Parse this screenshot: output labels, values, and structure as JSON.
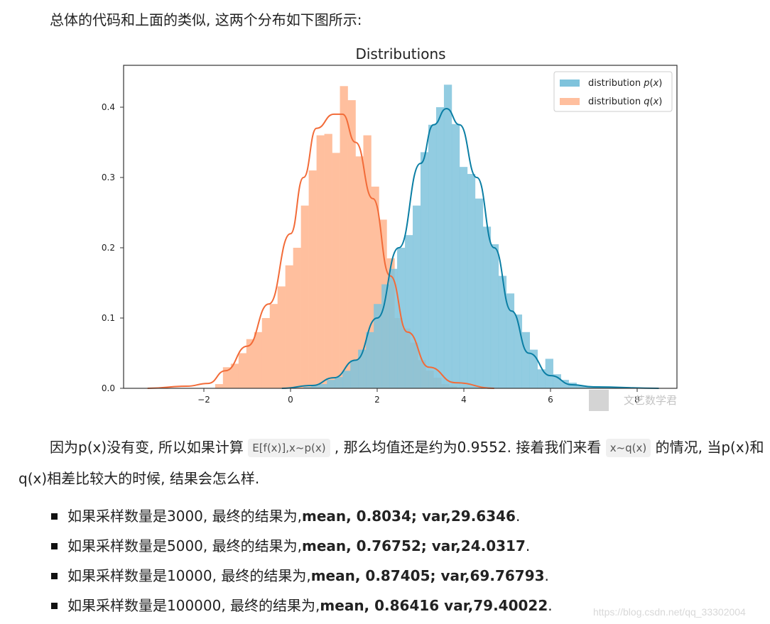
{
  "intro_text": "总体的代码和上面的类似, 这两个分布如下图所示:",
  "chart_data": {
    "type": "bar",
    "title": "Distributions",
    "xlabel": "",
    "ylabel": "",
    "xlim": [
      -3.8,
      9.0
    ],
    "ylim": [
      0.0,
      0.46
    ],
    "xticks": [
      -2,
      0,
      2,
      4,
      6,
      8
    ],
    "xtick_labels": [
      "−2",
      "0",
      "2",
      "4",
      "6",
      "8"
    ],
    "yticks": [
      0.0,
      0.1,
      0.2,
      0.3,
      0.4
    ],
    "ytick_labels": [
      "0.0",
      "0.1",
      "0.2",
      "0.3",
      "0.4"
    ],
    "grid": false,
    "legend_position": "upper right",
    "bin_width": 0.18,
    "series": [
      {
        "name": "distribution p(x)",
        "color": "#7fc3dc",
        "line_color": "#0a7ea4",
        "kind": "histogram+kde",
        "bin_left_edges": [
          0.3,
          0.48,
          0.66,
          0.84,
          1.02,
          1.2,
          1.38,
          1.56,
          1.74,
          1.92,
          2.1,
          2.28,
          2.46,
          2.64,
          2.82,
          3.0,
          3.18,
          3.36,
          3.54,
          3.72,
          3.9,
          4.08,
          4.26,
          4.44,
          4.62,
          4.8,
          4.98,
          5.16,
          5.34,
          5.52,
          5.7,
          5.88,
          6.06,
          6.24,
          6.42,
          6.6,
          6.78,
          6.96,
          7.14,
          7.32,
          7.5
        ],
        "values": [
          0.002,
          0.004,
          0.006,
          0.012,
          0.016,
          0.025,
          0.04,
          0.055,
          0.08,
          0.12,
          0.148,
          0.17,
          0.2,
          0.218,
          0.26,
          0.336,
          0.375,
          0.4,
          0.432,
          0.376,
          0.315,
          0.305,
          0.27,
          0.23,
          0.205,
          0.16,
          0.135,
          0.105,
          0.08,
          0.055,
          0.027,
          0.042,
          0.02,
          0.012,
          0.008,
          0.004,
          0.002,
          0.003,
          0.002,
          0.001,
          0.001
        ],
        "kde_points": [
          [
            -0.2,
            0.0
          ],
          [
            0.5,
            0.004
          ],
          [
            1.0,
            0.015
          ],
          [
            1.5,
            0.04
          ],
          [
            2.0,
            0.1
          ],
          [
            2.5,
            0.2
          ],
          [
            3.0,
            0.32
          ],
          [
            3.3,
            0.375
          ],
          [
            3.6,
            0.398
          ],
          [
            3.9,
            0.375
          ],
          [
            4.3,
            0.3
          ],
          [
            4.7,
            0.2
          ],
          [
            5.1,
            0.11
          ],
          [
            5.5,
            0.05
          ],
          [
            6.0,
            0.018
          ],
          [
            6.5,
            0.005
          ],
          [
            7.0,
            0.002
          ],
          [
            8.5,
            0.0
          ]
        ]
      },
      {
        "name": "distribution q(x)",
        "color": "#ffbf9e",
        "line_color": "#f26b38",
        "kind": "histogram+kde",
        "bin_left_edges": [
          -1.74,
          -1.56,
          -1.38,
          -1.2,
          -1.02,
          -0.84,
          -0.66,
          -0.48,
          -0.3,
          -0.12,
          0.06,
          0.24,
          0.42,
          0.6,
          0.78,
          0.96,
          1.14,
          1.32,
          1.5,
          1.68,
          1.86,
          2.04,
          2.22,
          2.4,
          2.58,
          2.76,
          2.94,
          3.12,
          3.3,
          3.48,
          3.66
        ],
        "values": [
          0.006,
          0.03,
          0.035,
          0.05,
          0.07,
          0.08,
          0.1,
          0.12,
          0.145,
          0.175,
          0.2,
          0.26,
          0.31,
          0.36,
          0.362,
          0.335,
          0.43,
          0.41,
          0.33,
          0.36,
          0.287,
          0.24,
          0.185,
          0.1,
          0.085,
          0.065,
          0.04,
          0.025,
          0.015,
          0.006,
          0.003
        ],
        "kde_points": [
          [
            -3.3,
            0.0
          ],
          [
            -2.4,
            0.003
          ],
          [
            -1.9,
            0.007
          ],
          [
            -1.5,
            0.025
          ],
          [
            -1.0,
            0.06
          ],
          [
            -0.5,
            0.12
          ],
          [
            0.0,
            0.22
          ],
          [
            0.3,
            0.3
          ],
          [
            0.6,
            0.37
          ],
          [
            1.0,
            0.39
          ],
          [
            1.2,
            0.39
          ],
          [
            1.5,
            0.35
          ],
          [
            1.9,
            0.27
          ],
          [
            2.3,
            0.16
          ],
          [
            2.7,
            0.08
          ],
          [
            3.2,
            0.03
          ],
          [
            3.8,
            0.008
          ],
          [
            4.7,
            0.0
          ]
        ]
      }
    ]
  },
  "watermark_logo_text": "文艺数学君",
  "paragraph2": {
    "part1": "因为p(x)没有变, 所以如果计算 ",
    "code1": "E[f(x)],x~p(x)",
    "part2": " , 那么均值还是约为0.9552. 接着我们来看 ",
    "code2": "x~q(x)",
    "part3": " 的情况, 当p(x)和q(x)相差比较大的时候, 结果会怎么样."
  },
  "results": [
    {
      "prefix": "如果采样数量是3000, 最终的结果为, ",
      "bold": "mean, 0.8034; var,29.6346",
      "suffix": "."
    },
    {
      "prefix": "如果采样数量是5000, 最终的结果为, ",
      "bold": "mean, 0.76752; var,24.0317",
      "suffix": "."
    },
    {
      "prefix": "如果采样数量是10000, 最终的结果为, ",
      "bold": "mean, 0.87405; var,69.76793",
      "suffix": "."
    },
    {
      "prefix": "如果采样数量是100000, 最终的结果为, ",
      "bold": "mean, 0.86416 var,79.40022",
      "suffix": "."
    }
  ],
  "page_watermark": "https://blog.csdn.net/qq_33302004"
}
